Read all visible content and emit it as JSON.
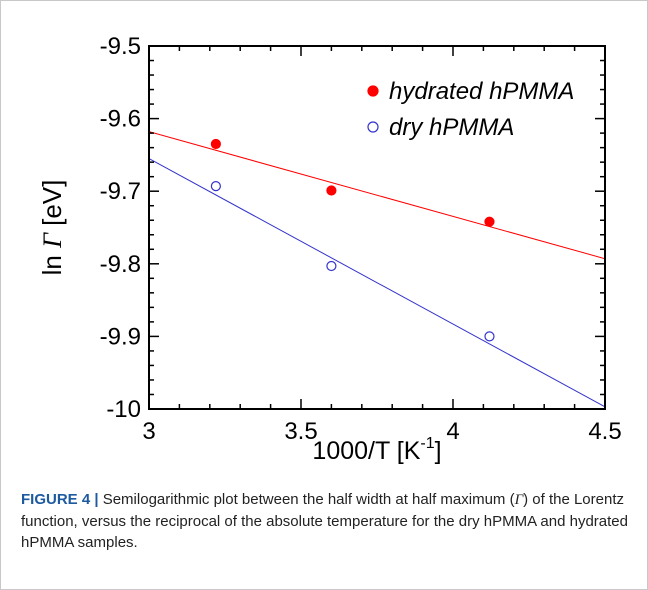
{
  "chart_data": {
    "type": "scatter",
    "xlabel": "1000/T [K",
    "xlabel_sup": "-1",
    "xlabel_end": "]",
    "ylabel_prefix": "ln ",
    "ylabel_symbol": "Γ",
    "ylabel_suffix": " [eV]",
    "xlim": [
      3,
      4.5
    ],
    "ylim": [
      -10,
      -9.5
    ],
    "x_ticks": [
      "3",
      "3.5",
      "4",
      "4.5"
    ],
    "y_ticks": [
      "-9.5",
      "-9.6",
      "-9.7",
      "-9.8",
      "-9.9",
      "-10"
    ],
    "grid": false,
    "legend_position": "top-right",
    "series": [
      {
        "name": "hydrated hPMMA",
        "color": "#ff0000",
        "marker": "filled-circle",
        "x": [
          3.22,
          3.6,
          4.12
        ],
        "y": [
          -9.635,
          -9.699,
          -9.742
        ],
        "fit": {
          "x": [
            3.0,
            4.5
          ],
          "y": [
            -9.618,
            -9.793
          ]
        }
      },
      {
        "name": "dry hPMMA",
        "color": "#3333cc",
        "marker": "open-circle",
        "x": [
          3.22,
          3.6,
          4.12
        ],
        "y": [
          -9.693,
          -9.803,
          -9.9
        ],
        "fit": {
          "x": [
            3.0,
            4.5
          ],
          "y": [
            -9.655,
            -9.997
          ]
        }
      }
    ]
  },
  "caption": {
    "label": "FIGURE 4 |",
    "text_before": " Semilogarithmic plot between the half width at half maximum (",
    "symbol": "Γ",
    "text_after": ") of the Lorentz function, versus the reciprocal of the absolute temperature for the dry hPMMA and hydrated hPMMA samples."
  }
}
